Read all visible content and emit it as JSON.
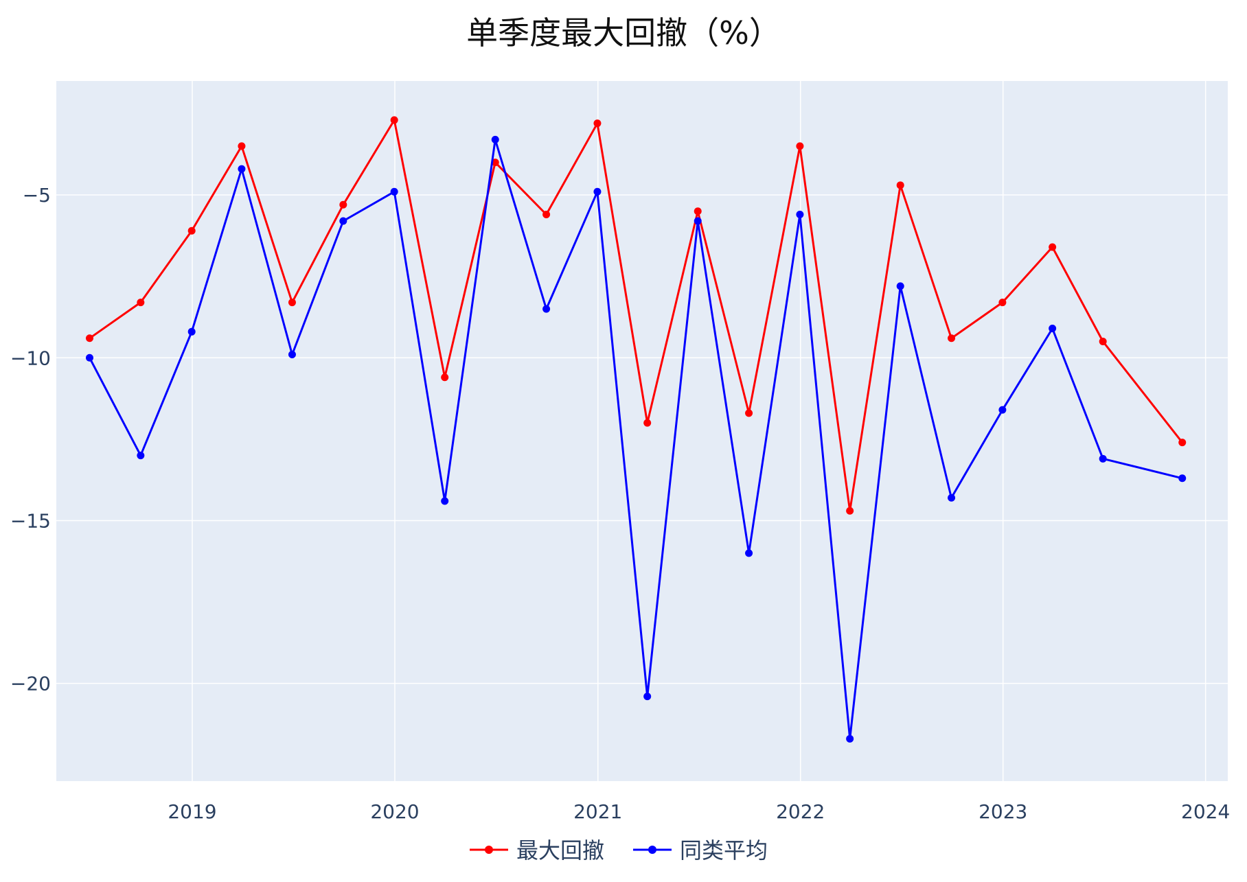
{
  "chart_data": {
    "type": "line",
    "title": "单季度最大回撤（%）",
    "xlabel": "",
    "ylabel": "",
    "x": [
      "2018-06-30",
      "2018-09-30",
      "2018-12-31",
      "2019-03-31",
      "2019-06-30",
      "2019-09-30",
      "2019-12-31",
      "2020-03-31",
      "2020-06-30",
      "2020-09-30",
      "2020-12-31",
      "2021-03-31",
      "2021-06-30",
      "2021-09-30",
      "2021-12-31",
      "2022-03-31",
      "2022-06-30",
      "2022-09-30",
      "2022-12-31",
      "2023-03-31",
      "2023-06-30",
      "2023-11-20"
    ],
    "series": [
      {
        "name": "最大回撤",
        "color": "#ff0000",
        "values": [
          -9.4,
          -8.3,
          -6.1,
          -3.5,
          -8.3,
          -5.3,
          -2.7,
          -10.6,
          -4.0,
          -5.6,
          -2.8,
          -12.0,
          -5.5,
          -11.7,
          -3.5,
          -14.7,
          -4.7,
          -9.4,
          -8.3,
          -6.6,
          -9.5,
          -12.6
        ]
      },
      {
        "name": "同类平均",
        "color": "#0000ff",
        "values": [
          -10.0,
          -13.0,
          -9.2,
          -4.2,
          -9.9,
          -5.8,
          -4.9,
          -14.4,
          -3.3,
          -8.5,
          -4.9,
          -20.4,
          -5.8,
          -16.0,
          -5.6,
          -21.7,
          -7.8,
          -14.3,
          -11.6,
          -9.1,
          -13.1,
          -13.7
        ]
      }
    ],
    "xlim": [
      "2018-05-01",
      "2024-02-10"
    ],
    "ylim": [
      -23.0,
      -1.5
    ],
    "x_ticks": [
      {
        "label": "2019",
        "date": "2019-01-01"
      },
      {
        "label": "2020",
        "date": "2020-01-01"
      },
      {
        "label": "2021",
        "date": "2021-01-01"
      },
      {
        "label": "2022",
        "date": "2022-01-01"
      },
      {
        "label": "2023",
        "date": "2023-01-01"
      },
      {
        "label": "2024",
        "date": "2024-01-01"
      }
    ],
    "y_ticks": [
      {
        "label": "−5",
        "value": -5
      },
      {
        "label": "−10",
        "value": -10
      },
      {
        "label": "−15",
        "value": -15
      },
      {
        "label": "−20",
        "value": -20
      }
    ],
    "grid": true,
    "legend_placement": "bottom-center",
    "plot_background": "#e5ecf6"
  }
}
